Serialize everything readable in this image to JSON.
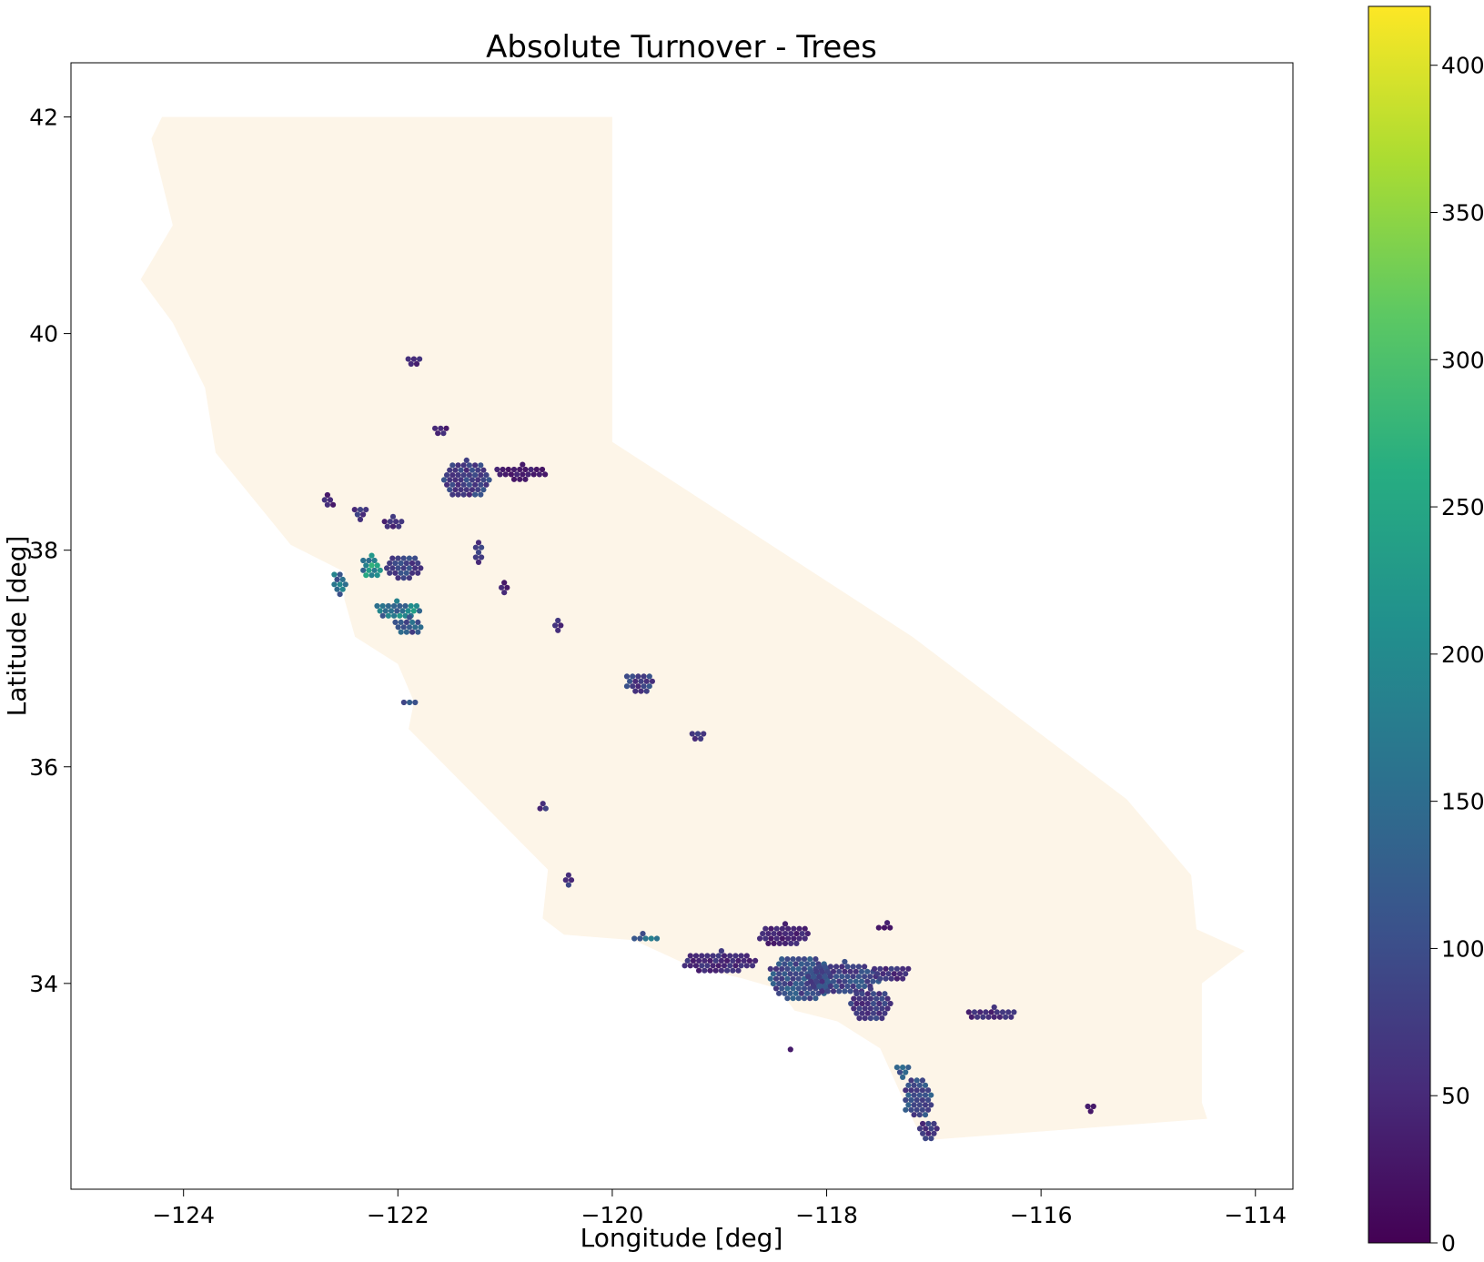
{
  "chart_data": {
    "type": "heatmap",
    "title": "Absolute Turnover - Trees",
    "xlabel": "Longitude [deg]",
    "ylabel": "Latitude [deg]",
    "xlim": [
      -125.05,
      -113.65
    ],
    "ylim": [
      32.1,
      42.5
    ],
    "xticks": [
      -124,
      -122,
      -120,
      -118,
      -116,
      -114
    ],
    "yticks": [
      34,
      36,
      38,
      40,
      42
    ],
    "x_tick_labels": [
      "−124",
      "−122",
      "−120",
      "−118",
      "−116",
      "−114"
    ],
    "y_tick_labels": [
      "34",
      "36",
      "38",
      "40",
      "42"
    ],
    "grid": false,
    "colormap": "viridis",
    "colorbar": {
      "range": [
        0,
        420
      ],
      "ticks": [
        0,
        50,
        100,
        150,
        200,
        250,
        300,
        350,
        400
      ],
      "tick_labels": [
        "0",
        "50",
        "100",
        "150",
        "200",
        "250",
        "300",
        "350",
        "400"
      ]
    },
    "background_region_color": "#fdf5e8",
    "region_outline": [
      [
        -124.2,
        42.0
      ],
      [
        -120.0,
        42.0
      ],
      [
        -120.0,
        39.0
      ],
      [
        -117.2,
        37.2
      ],
      [
        -115.2,
        35.7
      ],
      [
        -114.6,
        35.0
      ],
      [
        -114.55,
        34.5
      ],
      [
        -114.1,
        34.3
      ],
      [
        -114.5,
        34.0
      ],
      [
        -114.5,
        33.3
      ],
      [
        -114.5,
        32.9
      ],
      [
        -114.45,
        32.75
      ],
      [
        -117.1,
        32.55
      ],
      [
        -117.25,
        32.85
      ],
      [
        -117.5,
        33.4
      ],
      [
        -117.9,
        33.65
      ],
      [
        -118.3,
        33.75
      ],
      [
        -118.45,
        33.95
      ],
      [
        -118.8,
        34.05
      ],
      [
        -119.25,
        34.15
      ],
      [
        -119.8,
        34.4
      ],
      [
        -120.45,
        34.45
      ],
      [
        -120.65,
        34.6
      ],
      [
        -120.6,
        35.05
      ],
      [
        -120.85,
        35.3
      ],
      [
        -121.3,
        35.75
      ],
      [
        -121.9,
        36.35
      ],
      [
        -121.85,
        36.6
      ],
      [
        -122.0,
        36.95
      ],
      [
        -122.4,
        37.2
      ],
      [
        -122.5,
        37.55
      ],
      [
        -122.5,
        37.8
      ],
      [
        -123.0,
        38.05
      ],
      [
        -123.7,
        38.9
      ],
      [
        -123.8,
        39.5
      ],
      [
        -124.1,
        40.1
      ],
      [
        -124.4,
        40.5
      ],
      [
        -124.1,
        41.0
      ],
      [
        -124.2,
        41.4
      ],
      [
        -124.3,
        41.8
      ]
    ],
    "clusters": [
      {
        "lon": -121.85,
        "lat": 39.75,
        "rx": 0.08,
        "ry": 0.06,
        "value": 55
      },
      {
        "lon": -121.6,
        "lat": 39.12,
        "rx": 0.08,
        "ry": 0.05,
        "value": 50
      },
      {
        "lon": -121.35,
        "lat": 38.65,
        "rx": 0.22,
        "ry": 0.18,
        "value": 90
      },
      {
        "lon": -120.85,
        "lat": 38.72,
        "rx": 0.25,
        "ry": 0.07,
        "value": 40
      },
      {
        "lon": -122.35,
        "lat": 38.35,
        "rx": 0.08,
        "ry": 0.07,
        "value": 70
      },
      {
        "lon": -122.65,
        "lat": 38.45,
        "rx": 0.06,
        "ry": 0.06,
        "value": 50
      },
      {
        "lon": -122.05,
        "lat": 38.25,
        "rx": 0.1,
        "ry": 0.06,
        "value": 60
      },
      {
        "lon": -122.55,
        "lat": 37.7,
        "rx": 0.07,
        "ry": 0.12,
        "value": 170
      },
      {
        "lon": -122.25,
        "lat": 37.85,
        "rx": 0.1,
        "ry": 0.1,
        "value": 220
      },
      {
        "lon": -122.0,
        "lat": 37.45,
        "rx": 0.22,
        "ry": 0.08,
        "value": 200
      },
      {
        "lon": -121.9,
        "lat": 37.3,
        "rx": 0.15,
        "ry": 0.08,
        "value": 130
      },
      {
        "lon": -121.95,
        "lat": 37.85,
        "rx": 0.18,
        "ry": 0.12,
        "value": 90
      },
      {
        "lon": -121.25,
        "lat": 37.95,
        "rx": 0.05,
        "ry": 0.12,
        "value": 80
      },
      {
        "lon": -121.0,
        "lat": 37.65,
        "rx": 0.06,
        "ry": 0.05,
        "value": 50
      },
      {
        "lon": -120.5,
        "lat": 37.3,
        "rx": 0.06,
        "ry": 0.05,
        "value": 60
      },
      {
        "lon": -119.75,
        "lat": 36.78,
        "rx": 0.14,
        "ry": 0.1,
        "value": 90
      },
      {
        "lon": -119.2,
        "lat": 36.3,
        "rx": 0.08,
        "ry": 0.05,
        "value": 70
      },
      {
        "lon": -121.9,
        "lat": 36.6,
        "rx": 0.07,
        "ry": 0.04,
        "value": 100
      },
      {
        "lon": -120.65,
        "lat": 35.62,
        "rx": 0.05,
        "ry": 0.04,
        "value": 70
      },
      {
        "lon": -120.4,
        "lat": 34.95,
        "rx": 0.06,
        "ry": 0.05,
        "value": 80
      },
      {
        "lon": -119.7,
        "lat": 34.42,
        "rx": 0.12,
        "ry": 0.04,
        "value": 160
      },
      {
        "lon": -119.0,
        "lat": 34.2,
        "rx": 0.35,
        "ry": 0.1,
        "value": 60
      },
      {
        "lon": -118.25,
        "lat": 34.05,
        "rx": 0.3,
        "ry": 0.22,
        "value": 110
      },
      {
        "lon": -117.85,
        "lat": 34.05,
        "rx": 0.35,
        "ry": 0.15,
        "value": 100
      },
      {
        "lon": -117.6,
        "lat": 33.8,
        "rx": 0.2,
        "ry": 0.15,
        "value": 80
      },
      {
        "lon": -117.4,
        "lat": 34.1,
        "rx": 0.18,
        "ry": 0.08,
        "value": 70
      },
      {
        "lon": -118.4,
        "lat": 34.45,
        "rx": 0.25,
        "ry": 0.1,
        "value": 50
      },
      {
        "lon": -117.15,
        "lat": 32.95,
        "rx": 0.14,
        "ry": 0.2,
        "value": 110
      },
      {
        "lon": -117.05,
        "lat": 32.65,
        "rx": 0.08,
        "ry": 0.1,
        "value": 80
      },
      {
        "lon": -117.3,
        "lat": 33.2,
        "rx": 0.07,
        "ry": 0.07,
        "value": 120
      },
      {
        "lon": -116.45,
        "lat": 33.72,
        "rx": 0.25,
        "ry": 0.06,
        "value": 60
      },
      {
        "lon": -117.45,
        "lat": 34.52,
        "rx": 0.09,
        "ry": 0.04,
        "value": 40
      },
      {
        "lon": -115.55,
        "lat": 32.85,
        "rx": 0.04,
        "ry": 0.06,
        "value": 40
      },
      {
        "lon": -118.35,
        "lat": 33.37,
        "rx": 0.04,
        "ry": 0.02,
        "value": 40
      }
    ]
  }
}
